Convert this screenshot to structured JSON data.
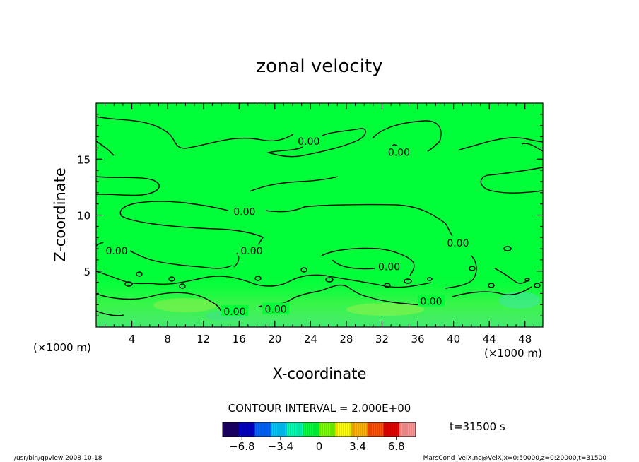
{
  "chart_data": {
    "type": "heatmap",
    "title": "zonal velocity",
    "xlabel": "X-coordinate",
    "ylabel": "Z-coordinate",
    "x_unit_left": "(×1000 m)",
    "x_unit_right": "(×1000 m)",
    "xlim": [
      0,
      50
    ],
    "ylim": [
      0,
      20
    ],
    "x_ticks": [
      "4",
      "8",
      "12",
      "16",
      "20",
      "24",
      "28",
      "32",
      "36",
      "40",
      "44",
      "48"
    ],
    "x_tick_values": [
      4,
      8,
      12,
      16,
      20,
      24,
      28,
      32,
      36,
      40,
      44,
      48
    ],
    "y_ticks": [
      "5",
      "10",
      "15"
    ],
    "y_tick_values": [
      5,
      10,
      15
    ],
    "contour_interval_text": "CONTOUR INTERVAL = 2.000E+00",
    "contour_labels": [
      {
        "text": "0.00",
        "x": 23.8,
        "z": 16.6
      },
      {
        "text": "0.00",
        "x": 33.9,
        "z": 15.6
      },
      {
        "text": "0.00",
        "x": 16.6,
        "z": 10.3
      },
      {
        "text": "0.00",
        "x": 2.3,
        "z": 6.8
      },
      {
        "text": "0.00",
        "x": 17.4,
        "z": 6.8
      },
      {
        "text": "0.00",
        "x": 40.5,
        "z": 7.5
      },
      {
        "text": "0.00",
        "x": 32.8,
        "z": 5.4
      },
      {
        "text": "0.00",
        "x": 15.5,
        "z": 1.4
      },
      {
        "text": "0.00",
        "x": 20.1,
        "z": 1.6
      },
      {
        "text": "0.00",
        "x": 37.5,
        "z": 2.3
      }
    ],
    "colorbar": {
      "range": [
        -8.5,
        8.5
      ],
      "tick_labels": [
        "−6.8",
        "−3.4",
        "0",
        "3.4",
        "6.8"
      ],
      "tick_values": [
        -6.8,
        -3.4,
        0,
        3.4,
        6.8
      ],
      "colors": [
        "#1a0066",
        "#0000c8",
        "#0064ff",
        "#00c8ff",
        "#00ffb4",
        "#00ff3c",
        "#78ff00",
        "#ffff00",
        "#ffb400",
        "#ff5000",
        "#e60000",
        "#ff9696"
      ]
    },
    "time_label": "t=31500 s",
    "colors": {
      "field": "#00ff38",
      "near_surface": "#5ff05a"
    }
  },
  "footer": {
    "left": "/usr/bin/gpview   2008-10-18",
    "right": "MarsCond_VelX.nc@VelX,x=0:50000,z=0:20000,t=31500"
  }
}
